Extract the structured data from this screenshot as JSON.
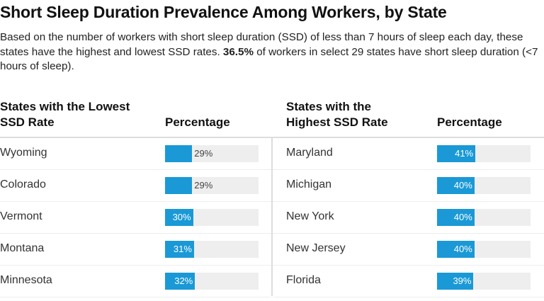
{
  "title": "Short Sleep Duration Prevalence Among Workers, by State",
  "subtitle_pre": "Based on the number of workers with short sleep duration (SSD) of less than 7 hours of sleep each day, these states have the highest and lowest SSD rates. ",
  "subtitle_bold": "36.5%",
  "subtitle_post": " of workers in select 29 states have short sleep duration (<7 hours of sleep).",
  "colors": {
    "bar": "#1a99d6",
    "track": "#eeeeee"
  },
  "chart_data": {
    "type": "table",
    "xlim": [
      0,
      100
    ],
    "tables": [
      {
        "header_state": "States with the Lowest SSD Rate",
        "header_value": "Percentage",
        "rows": [
          {
            "state": "Wyoming",
            "value": 29
          },
          {
            "state": "Colorado",
            "value": 29
          },
          {
            "state": "Vermont",
            "value": 30
          },
          {
            "state": "Montana",
            "value": 31
          },
          {
            "state": "Minnesota",
            "value": 32
          }
        ]
      },
      {
        "header_state": "States with the Highest SSD Rate",
        "header_value": "Percentage",
        "rows": [
          {
            "state": "Maryland",
            "value": 41
          },
          {
            "state": "Michigan",
            "value": 40
          },
          {
            "state": "New York",
            "value": 40
          },
          {
            "state": "New Jersey",
            "value": 40
          },
          {
            "state": "Florida",
            "value": 39
          }
        ]
      }
    ]
  }
}
